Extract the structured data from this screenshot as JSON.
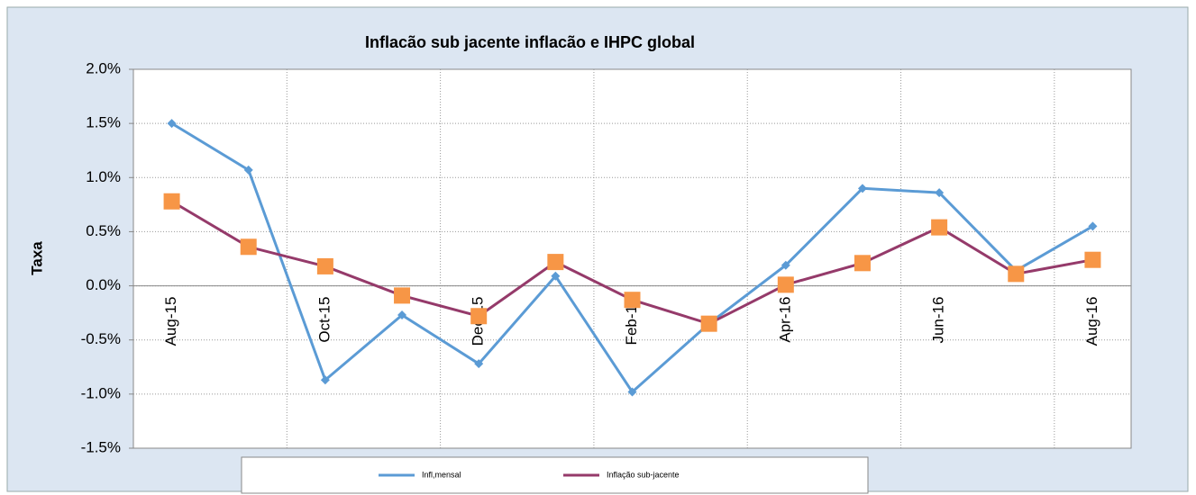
{
  "chart_data": {
    "type": "line",
    "title": "Inflacão sub jacente inflacão e IHPC global",
    "y_label": "Taxa",
    "categories": [
      "Aug-15",
      null,
      "Oct-15",
      null,
      "Dec-15",
      null,
      "Feb-16",
      null,
      "Apr-16",
      null,
      "Jun-16",
      null,
      "Aug-16"
    ],
    "series": [
      {
        "name": "Infl,mensal",
        "color": "#5b9bd5",
        "marker": "diamond",
        "values": [
          1.5,
          1.07,
          -0.87,
          -0.27,
          -0.72,
          0.09,
          -0.98,
          -0.35,
          0.19,
          0.9,
          0.86,
          0.14,
          0.55
        ]
      },
      {
        "name": "Inflação sub-jacente",
        "color": "#953a6a",
        "marker": "square",
        "marker_color": "#f79646",
        "values": [
          0.78,
          0.36,
          0.18,
          -0.09,
          -0.28,
          0.22,
          -0.13,
          -0.35,
          0.01,
          0.21,
          0.54,
          0.11,
          0.24
        ]
      }
    ],
    "ylim": [
      -1.5,
      2.0
    ],
    "yticks": [
      {
        "value": -1.5,
        "label": "-1.5%"
      },
      {
        "value": -1.0,
        "label": "-1.0%"
      },
      {
        "value": -0.5,
        "label": "-0.5%"
      },
      {
        "value": 0.0,
        "label": "0.0%"
      },
      {
        "value": 0.5,
        "label": "0.5%"
      },
      {
        "value": 1.0,
        "label": "1.0%"
      },
      {
        "value": 1.5,
        "label": "1.5%"
      },
      {
        "value": 2.0,
        "label": "2.0%"
      }
    ],
    "grid": true,
    "legend": "bottom"
  }
}
